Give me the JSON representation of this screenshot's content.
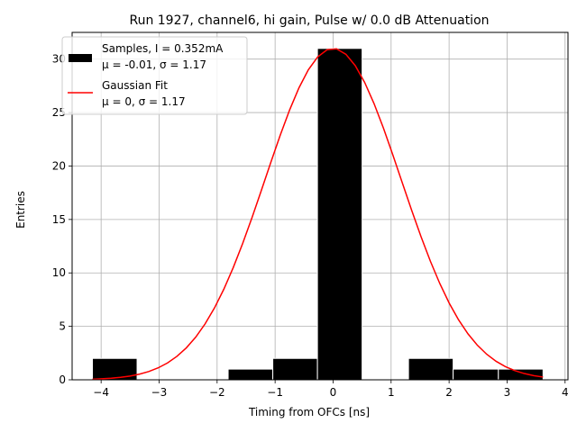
{
  "chart_data": {
    "type": "bar",
    "title": "Run 1927, channel6, hi gain, Pulse w/ 0.0 dB Attenuation",
    "xlabel": "Timing from OFCs [ns]",
    "ylabel": "Entries",
    "xlim": [
      -4.5,
      4.05
    ],
    "ylim": [
      0,
      32.5
    ],
    "xticks": [
      -4,
      -3,
      -2,
      -1,
      0,
      1,
      2,
      3,
      4
    ],
    "xtick_labels": [
      "−4",
      "−3",
      "−2",
      "−1",
      "0",
      "1",
      "2",
      "3",
      "4"
    ],
    "yticks": [
      0,
      5,
      10,
      15,
      20,
      25,
      30
    ],
    "ytick_labels": [
      "0",
      "5",
      "10",
      "15",
      "20",
      "25",
      "30"
    ],
    "grid": true,
    "legend_position": "top-left",
    "histogram": {
      "name": "Samples, I = 0.352mA",
      "stats_label": "μ = -0.01, σ = 1.17",
      "color": "#000000",
      "edgecolor": "#ffffff",
      "bins": [
        {
          "x0": -4.15,
          "x1": -3.38,
          "value": 2
        },
        {
          "x0": -1.81,
          "x1": -1.04,
          "value": 1
        },
        {
          "x0": -1.04,
          "x1": -0.27,
          "value": 2
        },
        {
          "x0": -0.27,
          "x1": 0.5,
          "value": 31
        },
        {
          "x0": 1.3,
          "x1": 2.07,
          "value": 2
        },
        {
          "x0": 2.07,
          "x1": 2.85,
          "value": 1
        },
        {
          "x0": 2.85,
          "x1": 3.62,
          "value": 1
        }
      ]
    },
    "fit": {
      "name": "Gaussian Fit",
      "stats_label": "μ = 0, σ = 1.17",
      "color": "#ff0000",
      "amplitude": 31,
      "mu": 0,
      "sigma": 1.17,
      "x_range": [
        -4.15,
        3.62
      ]
    }
  }
}
